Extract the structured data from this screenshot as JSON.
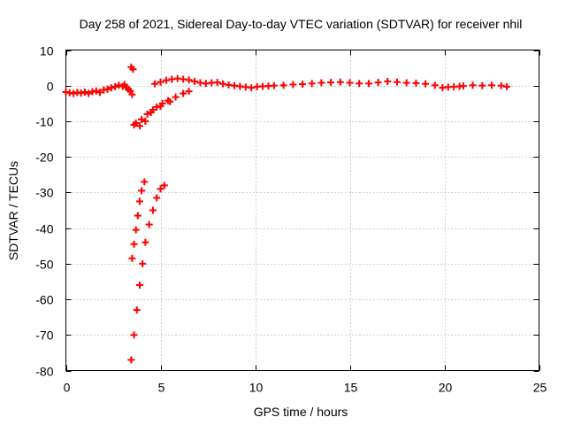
{
  "chart_data": {
    "type": "scatter",
    "title": "Day 258 of 2021, Sidereal Day-to-day VTEC variation (SDTVAR) for receiver nhil",
    "xlabel": "GPS time / hours",
    "ylabel": "SDTVAR / TECUs",
    "xlim": [
      0,
      25
    ],
    "ylim": [
      -80,
      10
    ],
    "xticks": [
      0,
      5,
      10,
      15,
      20,
      25
    ],
    "yticks": [
      10,
      0,
      -10,
      -20,
      -30,
      -40,
      -50,
      -60,
      -70,
      -80
    ],
    "grid": true,
    "marker": "+",
    "series": [
      {
        "name": "SDTVAR",
        "color": "#ff0000",
        "points": [
          [
            0.0,
            -1.8
          ],
          [
            0.2,
            -2.0
          ],
          [
            0.4,
            -2.2
          ],
          [
            0.6,
            -1.9
          ],
          [
            0.8,
            -2.1
          ],
          [
            1.0,
            -1.8
          ],
          [
            1.2,
            -2.2
          ],
          [
            1.4,
            -1.7
          ],
          [
            1.6,
            -1.5
          ],
          [
            1.8,
            -1.9
          ],
          [
            2.0,
            -1.2
          ],
          [
            2.2,
            -1.0
          ],
          [
            2.4,
            -0.6
          ],
          [
            2.6,
            -0.3
          ],
          [
            2.8,
            0.1
          ],
          [
            3.0,
            -0.2
          ],
          [
            3.1,
            0.3
          ],
          [
            3.2,
            -0.5
          ],
          [
            3.3,
            -1.0
          ],
          [
            3.4,
            -1.5
          ],
          [
            3.5,
            -2.5
          ],
          [
            3.45,
            5.2
          ],
          [
            3.55,
            4.6
          ],
          [
            3.5,
            -48.5
          ],
          [
            3.6,
            -44.5
          ],
          [
            3.7,
            -40.5
          ],
          [
            3.8,
            -36.5
          ],
          [
            3.9,
            -32.5
          ],
          [
            4.0,
            -29.5
          ],
          [
            4.15,
            -27.0
          ],
          [
            3.45,
            -77.0
          ],
          [
            3.6,
            -70.0
          ],
          [
            3.75,
            -63.0
          ],
          [
            3.9,
            -56.0
          ],
          [
            4.05,
            -50.0
          ],
          [
            4.2,
            -44.0
          ],
          [
            4.4,
            -39.0
          ],
          [
            4.6,
            -35.0
          ],
          [
            4.8,
            -31.5
          ],
          [
            5.0,
            -29.0
          ],
          [
            5.2,
            -28.0
          ],
          [
            3.6,
            -11.0
          ],
          [
            3.9,
            -11.3
          ],
          [
            4.2,
            -10.0
          ],
          [
            4.5,
            -7.5
          ],
          [
            4.8,
            -6.0
          ],
          [
            5.1,
            -5.0
          ],
          [
            5.4,
            -4.2
          ],
          [
            5.8,
            -3.2
          ],
          [
            6.2,
            -2.2
          ],
          [
            6.5,
            -1.6
          ],
          [
            3.7,
            -10.5
          ],
          [
            4.0,
            -9.5
          ],
          [
            4.3,
            -8.0
          ],
          [
            4.6,
            -6.8
          ],
          [
            5.0,
            -5.8
          ],
          [
            5.5,
            -4.5
          ],
          [
            4.7,
            0.5
          ],
          [
            5.0,
            1.0
          ],
          [
            5.3,
            1.5
          ],
          [
            5.6,
            1.8
          ],
          [
            5.9,
            2.0
          ],
          [
            6.2,
            1.8
          ],
          [
            6.5,
            1.6
          ],
          [
            6.8,
            1.2
          ],
          [
            7.1,
            0.8
          ],
          [
            7.4,
            0.6
          ],
          [
            7.7,
            0.8
          ],
          [
            8.0,
            0.9
          ],
          [
            8.3,
            0.5
          ],
          [
            8.6,
            0.2
          ],
          [
            8.9,
            0.0
          ],
          [
            9.2,
            -0.2
          ],
          [
            9.5,
            -0.4
          ],
          [
            9.8,
            -0.6
          ],
          [
            10.1,
            -0.3
          ],
          [
            10.4,
            -0.2
          ],
          [
            10.7,
            -0.1
          ],
          [
            11.0,
            0.0
          ],
          [
            11.5,
            0.1
          ],
          [
            12.0,
            0.3
          ],
          [
            12.5,
            0.4
          ],
          [
            13.0,
            0.6
          ],
          [
            13.5,
            0.8
          ],
          [
            14.0,
            0.9
          ],
          [
            14.5,
            1.0
          ],
          [
            15.0,
            0.8
          ],
          [
            15.5,
            0.6
          ],
          [
            16.0,
            0.6
          ],
          [
            16.5,
            0.9
          ],
          [
            17.0,
            1.2
          ],
          [
            17.5,
            1.0
          ],
          [
            18.0,
            0.8
          ],
          [
            18.5,
            0.7
          ],
          [
            19.0,
            0.5
          ],
          [
            19.5,
            0.1
          ],
          [
            19.9,
            -0.6
          ],
          [
            20.2,
            -0.4
          ],
          [
            20.5,
            -0.3
          ],
          [
            20.8,
            -0.2
          ],
          [
            21.0,
            -0.1
          ],
          [
            21.5,
            0.1
          ],
          [
            22.0,
            0.0
          ],
          [
            22.5,
            0.1
          ],
          [
            23.0,
            0.0
          ],
          [
            23.3,
            -0.3
          ]
        ]
      }
    ]
  }
}
